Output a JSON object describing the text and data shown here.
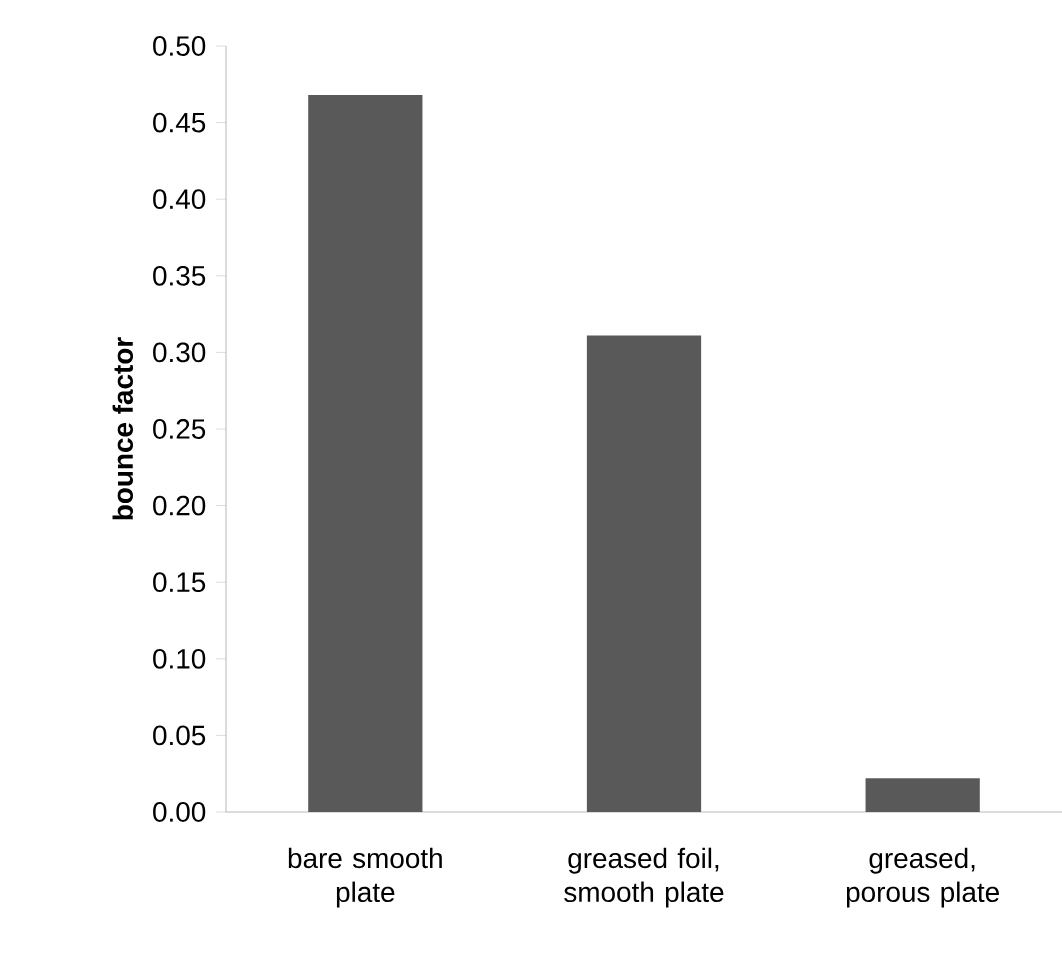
{
  "chart_data": {
    "type": "bar",
    "ylabel": "bounce factor",
    "categories": [
      "bare smooth plate",
      "greased foil, smooth plate",
      "greased, porous plate"
    ],
    "values": [
      0.468,
      0.311,
      0.022
    ],
    "color": "#595959",
    "ylim": [
      0,
      0.5
    ],
    "yticks": [
      {
        "value": 0,
        "label": "0.00"
      },
      {
        "value": 0.05,
        "label": "0.05"
      },
      {
        "value": 0.1,
        "label": "0.10"
      },
      {
        "value": 0.15,
        "label": "0.15"
      },
      {
        "value": 0.2,
        "label": "0.20"
      },
      {
        "value": 0.25,
        "label": "0.25"
      },
      {
        "value": 0.3,
        "label": "0.30"
      },
      {
        "value": 0.35,
        "label": "0.35"
      },
      {
        "value": 0.4,
        "label": "0.40"
      },
      {
        "value": 0.45,
        "label": "0.45"
      },
      {
        "value": 0.5,
        "label": "0.50"
      }
    ],
    "grid": false
  }
}
